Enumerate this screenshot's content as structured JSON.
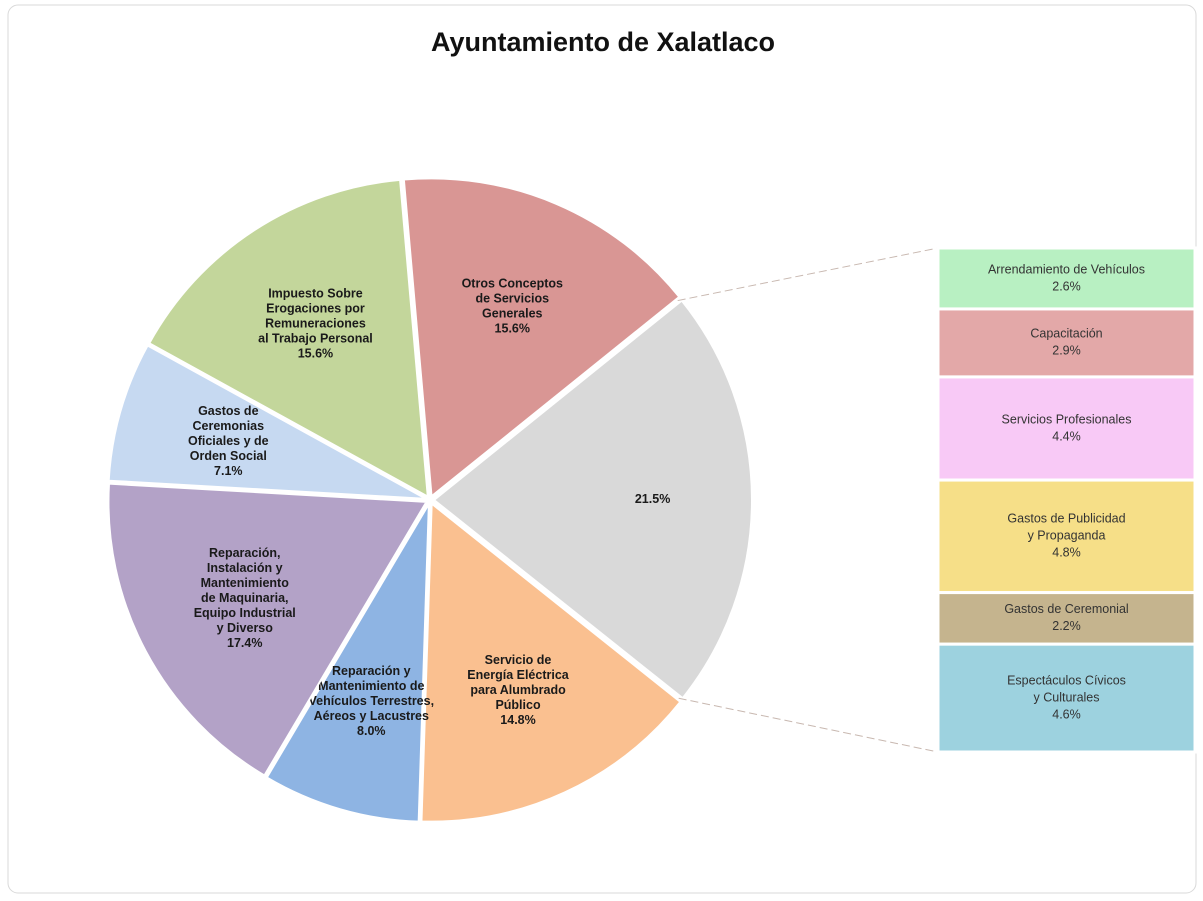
{
  "chart_data": {
    "type": "pie",
    "title": "Ayuntamiento de Xalatlaco",
    "categories": [
      [
        "Otros Conceptos",
        "de Servicios",
        "Generales"
      ],
      null,
      [
        "Servicio de",
        "Energía Eléctrica",
        "para Alumbrado",
        "Público"
      ],
      [
        "Reparación y",
        "Mantenimiento de",
        "Vehículos Terrestres,",
        "Aéreos y Lacustres"
      ],
      [
        "Reparación,",
        "Instalación y",
        "Mantenimiento",
        "de Maquinaria,",
        "Equipo Industrial",
        "y Diverso"
      ],
      [
        "Gastos de",
        "Ceremonias",
        "Oficiales  y de",
        "Orden Social"
      ],
      [
        "Impuesto Sobre",
        "Erogaciones por",
        "Remuneraciones",
        "al Trabajo Personal"
      ]
    ],
    "values": [
      15.6,
      21.5,
      14.8,
      8.0,
      17.4,
      7.1,
      15.6
    ],
    "value_labels": [
      "15.6%",
      "21.5%",
      "14.8%",
      "8.0%",
      "17.4%",
      "7.1%",
      "15.6%"
    ],
    "colors": [
      "#d99694",
      "#d9d9d9",
      "#fac090",
      "#8eb4e3",
      "#b3a2c7",
      "#c6d9f1",
      "#c3d69b"
    ],
    "breakdown": {
      "categories": [
        [
          "Arrendamiento de Vehículos"
        ],
        [
          "Capacitación"
        ],
        [
          "Servicios Profesionales"
        ],
        [
          "Gastos de Publicidad",
          "y Propaganda"
        ],
        [
          "Gastos de Ceremonial"
        ],
        [
          "Espectáculos Cívicos",
          "y Culturales"
        ]
      ],
      "values": [
        2.6,
        2.9,
        4.4,
        4.8,
        2.2,
        4.6
      ],
      "value_labels": [
        "2.6%",
        "2.9%",
        "4.4%",
        "4.8%",
        "2.2%",
        "4.6%"
      ],
      "colors": [
        "#b8f0c2",
        "#e3a8a8",
        "#f8c9f6",
        "#f6df88",
        "#c5b48e",
        "#9dd2df"
      ]
    }
  }
}
